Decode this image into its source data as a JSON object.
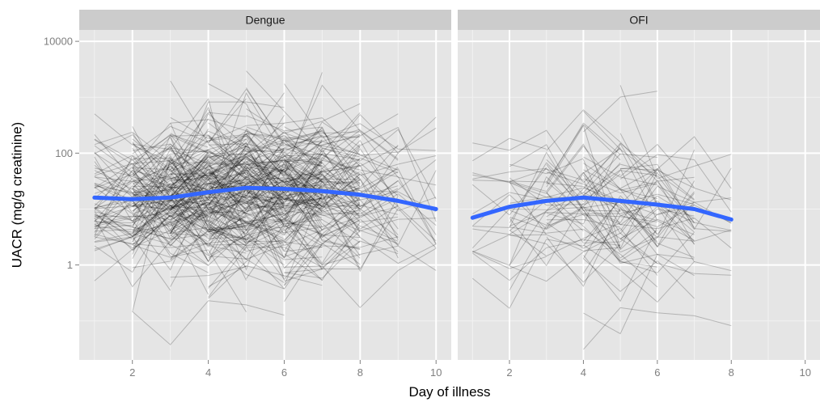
{
  "chart_data": {
    "type": "line",
    "xlabel": "Day of illness",
    "ylabel": "UACR (mg/g creatinine)",
    "yscale": "log10",
    "ylim": [
      0.02,
      16000
    ],
    "xlim": [
      0.6,
      10.4
    ],
    "y_ticks": [
      {
        "value": 1,
        "label": "1"
      },
      {
        "value": 100,
        "label": "100"
      },
      {
        "value": 10000,
        "label": "10000"
      }
    ],
    "x_ticks": [
      {
        "value": 2,
        "label": "2"
      },
      {
        "value": 4,
        "label": "4"
      },
      {
        "value": 6,
        "label": "6"
      },
      {
        "value": 8,
        "label": "8"
      },
      {
        "value": 10,
        "label": "10"
      }
    ],
    "grid": true,
    "colors": {
      "panel_bg": "#e5e5e5",
      "strip_bg": "#cccccc",
      "grid": "#ffffff",
      "individual_lines": "#000000",
      "smooth_line": "#3366ff"
    },
    "panels": [
      {
        "strip": "Dengue",
        "individual_lines": "many patient trajectories (gray), day 1-10",
        "smooth_curve": {
          "x": [
            1,
            2,
            3,
            4,
            5,
            6,
            7,
            8,
            9,
            10
          ],
          "y": [
            16,
            15,
            16,
            20,
            24,
            23,
            21,
            18,
            14,
            10
          ]
        }
      },
      {
        "strip": "OFI",
        "individual_lines": "patient trajectories (gray), day 1-8",
        "smooth_curve": {
          "x": [
            1,
            2,
            3,
            4,
            5,
            6,
            7,
            8
          ],
          "y": [
            7,
            11,
            14,
            16,
            14,
            12,
            10,
            6.5
          ]
        }
      }
    ]
  }
}
